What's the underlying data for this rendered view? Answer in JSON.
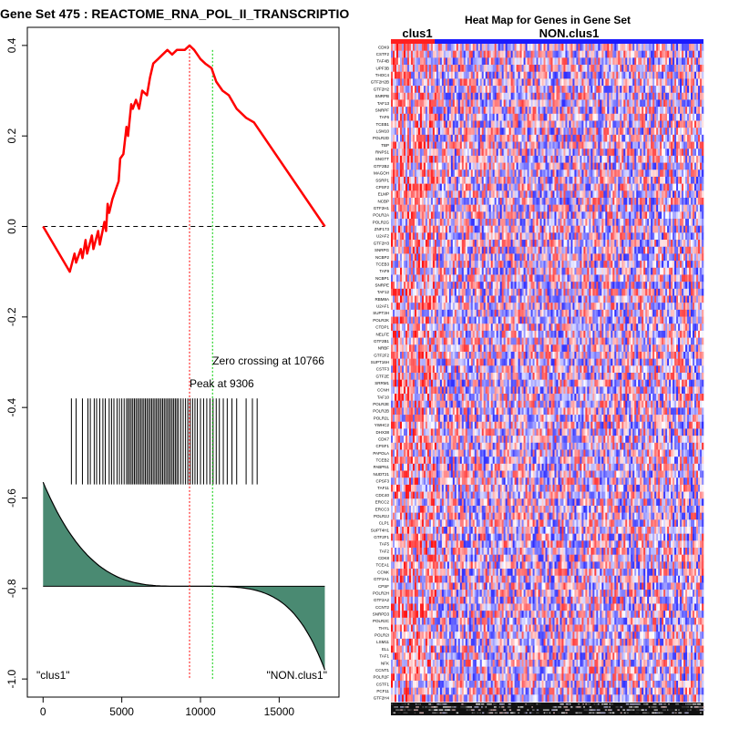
{
  "chart_data": [
    {
      "type": "line",
      "title": "Gene Set  475 : REACTOME_RNA_POL_II_TRANSCRIPTIO",
      "xlabel": "",
      "ylabel": "",
      "xlim": [
        -1000,
        18800
      ],
      "ylim": [
        -1.04,
        0.44
      ],
      "x_ticks": [
        {
          "value": 0,
          "label": "0"
        },
        {
          "value": 5000,
          "label": "5000"
        },
        {
          "value": 10000,
          "label": "10000"
        },
        {
          "value": 15000,
          "label": "15000"
        }
      ],
      "y_ticks": [
        {
          "value": 0.4,
          "label": "0.4"
        },
        {
          "value": 0.2,
          "label": "0.2"
        },
        {
          "value": 0.0,
          "label": "0.0"
        },
        {
          "value": -0.2,
          "label": "-0.2"
        },
        {
          "value": -0.4,
          "label": "-0.4"
        },
        {
          "value": -0.6,
          "label": "-0.6"
        },
        {
          "value": -0.8,
          "label": "-0.8"
        },
        {
          "value": -1.0,
          "label": "-1.0"
        }
      ],
      "grid": false,
      "zero_line": 0.0,
      "running_es": {
        "x": [
          0,
          1700,
          2000,
          2100,
          2400,
          2500,
          2700,
          2800,
          3100,
          3200,
          3500,
          3600,
          3900,
          4000,
          4100,
          4200,
          4400,
          4600,
          4800,
          4900,
          5100,
          5300,
          5400,
          5600,
          5700,
          5900,
          6100,
          6300,
          6600,
          6800,
          7000,
          7300,
          7600,
          7900,
          8200,
          8500,
          8800,
          9000,
          9306,
          9600,
          10000,
          10300,
          10700,
          11000,
          11400,
          11800,
          12300,
          12900,
          13400,
          17900
        ],
        "y": [
          0.0,
          -0.1,
          -0.06,
          -0.08,
          -0.05,
          -0.07,
          -0.03,
          -0.06,
          -0.02,
          -0.05,
          -0.01,
          -0.04,
          0.01,
          -0.01,
          0.05,
          0.03,
          0.06,
          0.08,
          0.1,
          0.15,
          0.16,
          0.22,
          0.2,
          0.27,
          0.26,
          0.28,
          0.26,
          0.3,
          0.29,
          0.33,
          0.36,
          0.37,
          0.38,
          0.39,
          0.38,
          0.39,
          0.39,
          0.39,
          0.4,
          0.39,
          0.37,
          0.36,
          0.35,
          0.32,
          0.3,
          0.29,
          0.26,
          0.24,
          0.23,
          0.0
        ]
      },
      "peak": {
        "x": 9306,
        "label": "Peak at 9306"
      },
      "zero_crossing": {
        "x": 10766,
        "label": "Zero crossing at 10766"
      },
      "hits": [
        1800,
        2100,
        2500,
        2850,
        3000,
        3250,
        3400,
        3600,
        3800,
        3950,
        4200,
        4350,
        4500,
        4700,
        4850,
        5000,
        5150,
        5300,
        5400,
        5500,
        5600,
        5700,
        5800,
        5900,
        6000,
        6100,
        6200,
        6300,
        6400,
        6500,
        6600,
        6700,
        6800,
        6900,
        7000,
        7100,
        7200,
        7300,
        7400,
        7500,
        7600,
        7700,
        7800,
        7900,
        8000,
        8100,
        8200,
        8300,
        8400,
        8500,
        8600,
        8750,
        8900,
        9050,
        9200,
        9350,
        9500,
        9650,
        9800,
        10000,
        10200,
        10400,
        10600,
        10800,
        11000,
        11200,
        11450,
        11700,
        12000,
        12300,
        12900,
        13300,
        13600
      ],
      "hits_band": [
        -0.57,
        -0.38
      ],
      "ranked_metric": {
        "baseline": -0.795,
        "top": -0.565,
        "bottom": -0.98,
        "n": 17900
      },
      "annotations": [
        "\"clus1\"",
        "\"NON.clus1\""
      ]
    },
    {
      "type": "heatmap",
      "title": "Heat Map for Genes in Gene Set",
      "groups": [
        {
          "name": "clus1",
          "color": "#ff2020"
        },
        {
          "name": "NON.clus1",
          "color": "#1a1aff"
        }
      ],
      "group_split_fraction": 0.14,
      "genes": [
        "CDK9",
        "CSTF2",
        "TAF4B",
        "UPF3B",
        "THOC4",
        "GTF2H2B",
        "GTF2H2",
        "SNRPB",
        "TAF13",
        "SNRPF",
        "TAF6",
        "TCEB1",
        "LSM10",
        "POLR2D",
        "TBP",
        "RNPS1",
        "SNGTT",
        "GTF2B2",
        "MAGOH",
        "SSRP1",
        "CPSF2",
        "ELMP",
        "NCBP",
        "GTF2H1",
        "POLR2A",
        "POLR2G",
        "ZNF173",
        "U2AF2",
        "GTF2H3",
        "SNRPG",
        "NCBP2",
        "TCEB3",
        "TAF9",
        "NCBP1",
        "SNRPE",
        "TAF12",
        "RBM8A",
        "U2AF1",
        "SUPT3H",
        "POLR2K",
        "CTDP1",
        "NELFE",
        "GTF2B1",
        "NRBF",
        "GTF2F2",
        "SUPT16H",
        "CSTF3",
        "GTF2E",
        "SRRM1",
        "CCNH",
        "TAF10",
        "POLR2E",
        "POLR2B",
        "POLR2L",
        "YWHC2",
        "DHX38",
        "CDK7",
        "CPSF1",
        "PAPOLA",
        "TCEB2",
        "PABPN1",
        "NUDT21",
        "CPSF3",
        "TAF11",
        "CDC40",
        "ERCC2",
        "ERCC3",
        "POLR2J",
        "CLP1",
        "SUPT4H1",
        "GTF2F1",
        "TAF5",
        "TAF2",
        "CDK8",
        "TCEA1",
        "CCNK",
        "GTF2A1",
        "CPSF",
        "POLR2H",
        "GTF2A2",
        "CCNT2",
        "SNRPD3",
        "POLR2C",
        "THYL",
        "POLR2I",
        "LSM11",
        "ELL",
        "TAF1",
        "NFK",
        "CCNT1",
        "POLR2F",
        "CSTF1",
        "PCF11",
        "GTF2H4"
      ]
    }
  ],
  "colors": {
    "es_line": "#ff0000",
    "peak_line": "#ff0000",
    "zero_cross_line": "#00cc00",
    "metric_fill": "#4a8a72",
    "heat_high": "#ff0000",
    "heat_low": "#0000ff",
    "heat_mid": "#ffffff"
  }
}
